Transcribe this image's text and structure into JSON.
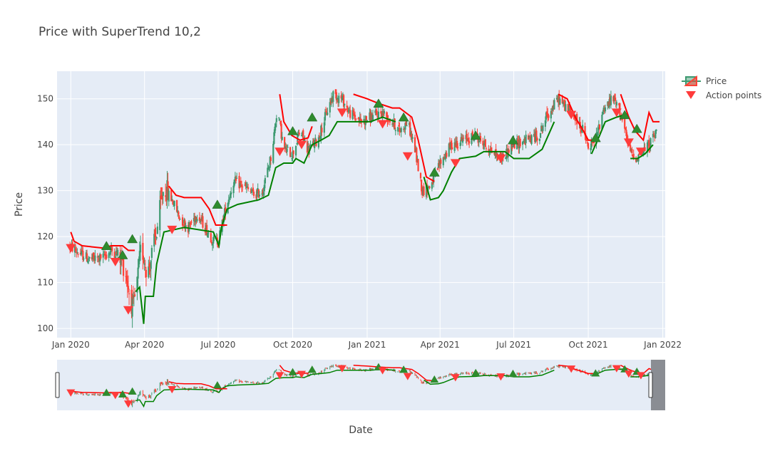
{
  "chart_data": {
    "type": "candlestick",
    "title": "Price with SuperTrend 10,2",
    "xlabel": "Date",
    "ylabel": "Price",
    "ylim": [
      98,
      156
    ],
    "xrange": [
      "2019-12-15",
      "2022-01-04"
    ],
    "y_ticks": [
      100,
      110,
      120,
      130,
      140,
      150
    ],
    "x_ticks": [
      {
        "date": "2020-01-01",
        "label": "Jan 2020"
      },
      {
        "date": "2020-04-01",
        "label": "Apr 2020"
      },
      {
        "date": "2020-07-01",
        "label": "Jul 2020"
      },
      {
        "date": "2020-10-01",
        "label": "Oct 2020"
      },
      {
        "date": "2021-01-01",
        "label": "Jan 2021"
      },
      {
        "date": "2021-04-01",
        "label": "Apr 2021"
      },
      {
        "date": "2021-07-01",
        "label": "Jul 2021"
      },
      {
        "date": "2021-10-01",
        "label": "Oct 2021"
      },
      {
        "date": "2022-01-01",
        "label": "Jan 2022"
      }
    ],
    "grid": true,
    "legend_position": "top-right",
    "rangeslider": true,
    "colors": {
      "increasing": "#3D9970",
      "decreasing": "#FF4136",
      "uptrend": "#008000",
      "downtrend": "#FF0000",
      "buy_marker": "#2E8B2E",
      "sell_marker": "#FF3B3B",
      "plot_bg": "#E5ECF6",
      "slider_mask": "#8A8D93"
    },
    "series": [
      {
        "name": "Price",
        "kind": "candlestick"
      },
      {
        "name": "Action points",
        "kind": "markers"
      }
    ],
    "price_path": [
      [
        "2019-12-31",
        118
      ],
      [
        "2020-01-10",
        116.5
      ],
      [
        "2020-01-25",
        115
      ],
      [
        "2020-02-10",
        115.5
      ],
      [
        "2020-02-20",
        117
      ],
      [
        "2020-03-01",
        116
      ],
      [
        "2020-03-08",
        113
      ],
      [
        "2020-03-13",
        108
      ],
      [
        "2020-03-18",
        104
      ],
      [
        "2020-03-23",
        110
      ],
      [
        "2020-03-28",
        118
      ],
      [
        "2020-04-05",
        112
      ],
      [
        "2020-04-15",
        120
      ],
      [
        "2020-04-25",
        131
      ],
      [
        "2020-05-05",
        128
      ],
      [
        "2020-05-15",
        124
      ],
      [
        "2020-05-25",
        122
      ],
      [
        "2020-06-05",
        125
      ],
      [
        "2020-06-15",
        122
      ],
      [
        "2020-06-25",
        119
      ],
      [
        "2020-07-01",
        119
      ],
      [
        "2020-07-10",
        126
      ],
      [
        "2020-07-20",
        132
      ],
      [
        "2020-08-01",
        131
      ],
      [
        "2020-08-15",
        129
      ],
      [
        "2020-08-25",
        130
      ],
      [
        "2020-09-05",
        138
      ],
      [
        "2020-09-12",
        148
      ],
      [
        "2020-09-20",
        139
      ],
      [
        "2020-10-01",
        138
      ],
      [
        "2020-10-10",
        143
      ],
      [
        "2020-10-20",
        139
      ],
      [
        "2020-11-01",
        141
      ],
      [
        "2020-11-10",
        146
      ],
      [
        "2020-11-20",
        151
      ],
      [
        "2020-12-01",
        150
      ],
      [
        "2020-12-10",
        147
      ],
      [
        "2020-12-25",
        145
      ],
      [
        "2021-01-05",
        146
      ],
      [
        "2021-01-20",
        147
      ],
      [
        "2021-02-01",
        145
      ],
      [
        "2021-02-10",
        143
      ],
      [
        "2021-02-20",
        145
      ],
      [
        "2021-03-01",
        139
      ],
      [
        "2021-03-10",
        130
      ],
      [
        "2021-03-20",
        131
      ],
      [
        "2021-04-01",
        136
      ],
      [
        "2021-04-15",
        140
      ],
      [
        "2021-05-01",
        141
      ],
      [
        "2021-05-15",
        142
      ],
      [
        "2021-06-01",
        139
      ],
      [
        "2021-06-15",
        137
      ],
      [
        "2021-07-01",
        140
      ],
      [
        "2021-07-15",
        141
      ],
      [
        "2021-08-01",
        142
      ],
      [
        "2021-08-10",
        146
      ],
      [
        "2021-08-25",
        150
      ],
      [
        "2021-09-10",
        147
      ],
      [
        "2021-09-25",
        143
      ],
      [
        "2021-10-01",
        139
      ],
      [
        "2021-10-10",
        141
      ],
      [
        "2021-10-20",
        148
      ],
      [
        "2021-11-01",
        150
      ],
      [
        "2021-11-10",
        147
      ],
      [
        "2021-11-20",
        139
      ],
      [
        "2021-11-27",
        137
      ],
      [
        "2021-12-05",
        138
      ],
      [
        "2021-12-15",
        140
      ],
      [
        "2021-12-25",
        143
      ]
    ],
    "uptrend_line": [
      [
        [
          "2020-03-21",
          108
        ],
        [
          "2020-03-26",
          109
        ],
        [
          "2020-03-31",
          101
        ],
        [
          "2020-04-02",
          107
        ],
        [
          "2020-04-12",
          107
        ],
        [
          "2020-04-16",
          114
        ],
        [
          "2020-04-25",
          121
        ],
        [
          "2020-05-20",
          122
        ],
        [
          "2020-06-25",
          121
        ],
        [
          "2020-07-02",
          118
        ],
        [
          "2020-07-05",
          122
        ],
        [
          "2020-07-12",
          126
        ],
        [
          "2020-07-25",
          127
        ],
        [
          "2020-08-20",
          128
        ],
        [
          "2020-09-01",
          129
        ],
        [
          "2020-09-10",
          135
        ],
        [
          "2020-09-20",
          136
        ],
        [
          "2020-10-01",
          136
        ],
        [
          "2020-10-05",
          137
        ],
        [
          "2020-10-15",
          136
        ],
        [
          "2020-10-25",
          140
        ],
        [
          "2020-11-05",
          141
        ],
        [
          "2020-11-15",
          142
        ],
        [
          "2020-11-25",
          145
        ],
        [
          "2020-12-10",
          145
        ],
        [
          "2021-01-05",
          145
        ],
        [
          "2021-01-20",
          146
        ],
        [
          "2021-02-05",
          145
        ]
      ],
      [
        [
          "2021-03-12",
          133
        ],
        [
          "2021-03-20",
          128
        ],
        [
          "2021-03-30",
          128.5
        ],
        [
          "2021-04-05",
          130
        ],
        [
          "2021-04-15",
          134
        ],
        [
          "2021-04-25",
          137
        ],
        [
          "2021-05-15",
          137.5
        ],
        [
          "2021-05-25",
          138.5
        ],
        [
          "2021-06-20",
          138.5
        ],
        [
          "2021-07-01",
          137
        ],
        [
          "2021-07-20",
          137
        ],
        [
          "2021-08-05",
          139
        ],
        [
          "2021-08-15",
          143
        ],
        [
          "2021-08-20",
          145
        ]
      ],
      [
        [
          "2021-10-05",
          138
        ],
        [
          "2021-10-15",
          142
        ],
        [
          "2021-10-22",
          145
        ],
        [
          "2021-11-05",
          146
        ],
        [
          "2021-11-15",
          146.5
        ]
      ],
      [
        [
          "2021-11-22",
          137
        ],
        [
          "2021-12-01",
          137
        ],
        [
          "2021-12-10",
          138
        ],
        [
          "2021-12-20",
          140
        ]
      ]
    ],
    "downtrend_line": [
      [
        [
          "2020-01-01",
          121
        ],
        [
          "2020-01-05",
          119
        ],
        [
          "2020-01-15",
          118
        ],
        [
          "2020-02-10",
          117.5
        ],
        [
          "2020-02-20",
          118
        ],
        [
          "2020-03-05",
          118
        ],
        [
          "2020-03-12",
          117
        ],
        [
          "2020-03-20",
          117
        ]
      ],
      [
        [
          "2020-05-01",
          131
        ],
        [
          "2020-05-10",
          129
        ],
        [
          "2020-05-20",
          128.5
        ],
        [
          "2020-06-10",
          128.5
        ],
        [
          "2020-06-20",
          126
        ],
        [
          "2020-06-28",
          122.5
        ],
        [
          "2020-07-12",
          122.5
        ]
      ],
      [
        [
          "2020-09-15",
          151
        ],
        [
          "2020-09-20",
          145
        ],
        [
          "2020-09-30",
          142
        ],
        [
          "2020-10-10",
          141
        ],
        [
          "2020-10-20",
          141.5
        ],
        [
          "2020-10-25",
          144
        ]
      ],
      [
        [
          "2020-12-15",
          151
        ],
        [
          "2021-01-01",
          150
        ],
        [
          "2021-01-15",
          149
        ],
        [
          "2021-02-01",
          148
        ],
        [
          "2021-02-10",
          148
        ],
        [
          "2021-02-25",
          146
        ],
        [
          "2021-03-05",
          141
        ],
        [
          "2021-03-15",
          133
        ],
        [
          "2021-03-25",
          132
        ]
      ],
      [
        [
          "2021-08-25",
          151
        ],
        [
          "2021-09-05",
          150
        ],
        [
          "2021-09-15",
          146
        ],
        [
          "2021-09-25",
          143
        ],
        [
          "2021-10-01",
          141
        ],
        [
          "2021-10-10",
          141
        ]
      ],
      [
        [
          "2021-11-10",
          151
        ],
        [
          "2021-11-20",
          146
        ],
        [
          "2021-11-28",
          143
        ],
        [
          "2021-12-08",
          141
        ],
        [
          "2021-12-15",
          147
        ],
        [
          "2021-12-20",
          145
        ],
        [
          "2021-12-28",
          145
        ]
      ]
    ],
    "buy_points": [
      [
        "2020-02-14",
        118
      ],
      [
        "2020-03-05",
        116
      ],
      [
        "2020-03-17",
        119.5
      ],
      [
        "2020-06-30",
        127
      ],
      [
        "2020-10-01",
        143
      ],
      [
        "2020-10-25",
        146
      ],
      [
        "2021-01-15",
        149
      ],
      [
        "2021-02-15",
        146
      ],
      [
        "2021-03-25",
        134
      ],
      [
        "2021-05-15",
        142
      ],
      [
        "2021-06-30",
        141
      ],
      [
        "2021-10-10",
        141.5
      ],
      [
        "2021-11-15",
        146.5
      ],
      [
        "2021-11-30",
        143.5
      ]
    ],
    "sell_points": [
      [
        "2020-01-01",
        117.5
      ],
      [
        "2020-02-25",
        114.5
      ],
      [
        "2020-03-12",
        104
      ],
      [
        "2020-05-05",
        121.5
      ],
      [
        "2020-09-15",
        138.5
      ],
      [
        "2020-10-12",
        140
      ],
      [
        "2020-12-01",
        147
      ],
      [
        "2021-01-20",
        144.5
      ],
      [
        "2021-02-20",
        137.5
      ],
      [
        "2021-04-20",
        136
      ],
      [
        "2021-06-15",
        137
      ],
      [
        "2021-09-10",
        146.5
      ],
      [
        "2021-11-05",
        147
      ],
      [
        "2021-11-20",
        140.5
      ],
      [
        "2021-12-05",
        138.5
      ]
    ]
  },
  "legend": {
    "price_label": "Price",
    "action_label": "Action points"
  }
}
